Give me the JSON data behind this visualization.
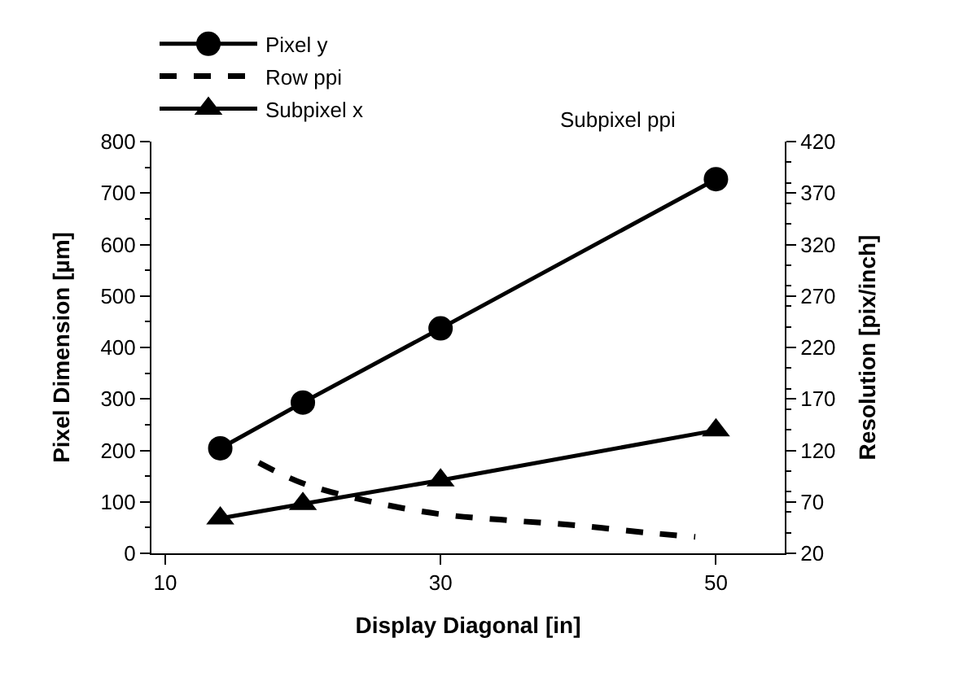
{
  "chart_data": {
    "type": "line",
    "xlabel": "Display Diagonal [in]",
    "ylabel": "Pixel Dimension [µm]",
    "y2label": "Resolution [pix/inch]",
    "xlim": [
      9,
      55
    ],
    "xticks": [
      10,
      30,
      50
    ],
    "ylim": [
      0,
      800
    ],
    "yticks": [
      0,
      100,
      200,
      300,
      400,
      500,
      600,
      700,
      800
    ],
    "y2lim": [
      20,
      420
    ],
    "y2ticks": [
      20,
      70,
      120,
      170,
      220,
      270,
      320,
      370,
      420
    ],
    "legend": "top",
    "series": [
      {
        "name": "Pixel y",
        "color": "#000000",
        "marker": "circle",
        "line_style": "solid",
        "x": [
          14,
          20,
          30,
          50
        ],
        "values": [
          204,
          293,
          437,
          727
        ]
      },
      {
        "name": "Row ppi",
        "color": "#000000",
        "marker": "none",
        "line_style": "dashed",
        "axis": "y2",
        "x": [
          16.8,
          20,
          25,
          30,
          35,
          40,
          45,
          48.5
        ],
        "values": [
          108,
          88,
          70,
          58,
          52,
          47,
          40,
          36
        ]
      },
      {
        "name": "Subpixel x",
        "color": "#000000",
        "marker": "triangle",
        "line_style": "solid",
        "x": [
          14,
          20,
          30,
          50
        ],
        "values": [
          68,
          96,
          142,
          239
        ]
      }
    ],
    "annotations": [
      "Subpixel ppi"
    ]
  }
}
